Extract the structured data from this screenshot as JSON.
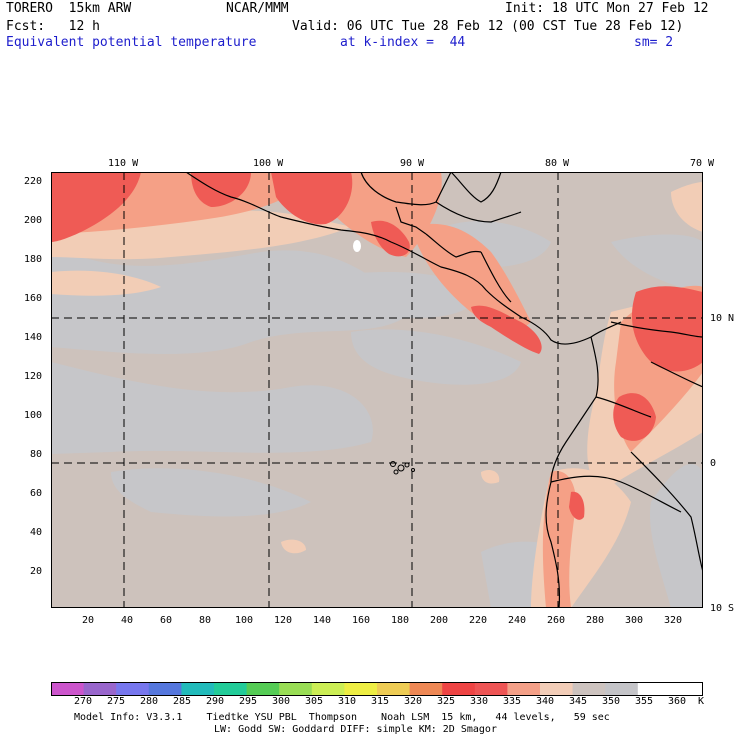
{
  "header": {
    "model": "TORERO  15km ARW",
    "center": "NCAR/MMM",
    "init": "Init: 18 UTC Mon 27 Feb 12",
    "fcst": "Fcst:   12 h",
    "valid": "Valid: 06 UTC Tue 28 Feb 12 (00 CST Tue 28 Feb 12)",
    "field": "Equivalent potential temperature",
    "level": "at k-index =  44",
    "smooth": "sm= 2"
  },
  "top_longitudes": [
    "110 W",
    "100 W",
    "90 W",
    "80 W",
    "70 W"
  ],
  "right_latitudes": [
    "10 N",
    "0",
    "10 S"
  ],
  "y_ticks": [
    "220",
    "200",
    "180",
    "160",
    "140",
    "120",
    "100",
    "80",
    "60",
    "40",
    "20"
  ],
  "x_ticks": [
    "20",
    "40",
    "60",
    "80",
    "100",
    "120",
    "140",
    "160",
    "180",
    "200",
    "220",
    "240",
    "260",
    "280",
    "300",
    "320"
  ],
  "colorbar": {
    "unit": "K",
    "labels": [
      "270",
      "275",
      "280",
      "285",
      "290",
      "295",
      "300",
      "305",
      "310",
      "315",
      "320",
      "325",
      "330",
      "335",
      "340",
      "345",
      "350",
      "355",
      "360"
    ],
    "colors": [
      "#cc55cc",
      "#9966cc",
      "#7777ee",
      "#5577dd",
      "#22bbbb",
      "#22cc99",
      "#55cc55",
      "#99dd55",
      "#ccee55",
      "#eeee44",
      "#eecc55",
      "#ee8855",
      "#ee4444",
      "#ee5555",
      "#f4a088",
      "#f2cdb8",
      "#cdc3bf",
      "#c4c4c8",
      "#ffffff"
    ]
  },
  "footer": {
    "line1": "Model Info: V3.3.1    Tiedtke YSU PBL  Thompson    Noah LSM  15 km,   44 levels,   59 sec",
    "line2": "LW: Godd SW: Goddard DIFF: simple KM: 2D Smagor"
  },
  "map_colors": {
    "background": "#cdc2bc",
    "grey": "#c6c6c9",
    "light": "#f2cdb6",
    "salmon": "#f5a086",
    "red": "#ef5b55",
    "deep": "#ec4a47"
  }
}
